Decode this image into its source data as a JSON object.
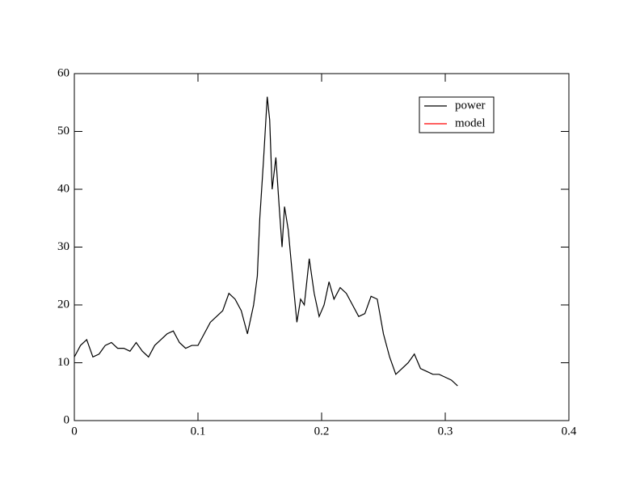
{
  "chart_data": {
    "type": "line",
    "series": [
      {
        "name": "power",
        "color": "#000000",
        "x": [
          0,
          0.005,
          0.01,
          0.015,
          0.02,
          0.025,
          0.03,
          0.035,
          0.04,
          0.045,
          0.05,
          0.055,
          0.06,
          0.065,
          0.07,
          0.075,
          0.08,
          0.085,
          0.09,
          0.095,
          0.1,
          0.105,
          0.11,
          0.115,
          0.12,
          0.125,
          0.13,
          0.135,
          0.14,
          0.145,
          0.148,
          0.15,
          0.153,
          0.156,
          0.158,
          0.16,
          0.163,
          0.166,
          0.168,
          0.17,
          0.173,
          0.176,
          0.18,
          0.183,
          0.186,
          0.19,
          0.194,
          0.198,
          0.202,
          0.206,
          0.21,
          0.215,
          0.22,
          0.225,
          0.23,
          0.235,
          0.24,
          0.245,
          0.25,
          0.255,
          0.26,
          0.265,
          0.27,
          0.275,
          0.28,
          0.285,
          0.29,
          0.295,
          0.3,
          0.305,
          0.31
        ],
        "values": [
          11,
          13,
          14,
          11,
          11.5,
          13,
          13.5,
          12.5,
          12.5,
          12,
          13.5,
          12,
          11,
          13,
          14,
          15,
          15.5,
          13.5,
          12.5,
          13,
          13,
          15,
          17,
          18,
          19,
          22,
          21,
          19,
          15,
          20,
          25,
          35,
          45,
          56,
          52,
          40,
          45.5,
          36,
          30,
          37,
          33,
          26,
          17,
          21,
          20,
          28,
          22,
          18,
          20,
          24,
          21,
          23,
          22,
          20,
          18,
          18.5,
          21.5,
          21,
          15,
          11,
          8,
          9,
          10,
          11.5,
          9,
          8.5,
          8,
          8,
          7.5,
          7,
          6
        ]
      },
      {
        "name": "model",
        "color": "#ff0000",
        "x": [],
        "values": []
      }
    ],
    "xlim": [
      0,
      0.4
    ],
    "xticks": [
      0,
      0.1,
      0.2,
      0.3,
      0.4
    ],
    "ylim": [
      0,
      60
    ],
    "yticks": [
      0,
      10,
      20,
      30,
      40,
      50,
      60
    ],
    "legend": "upper right"
  }
}
